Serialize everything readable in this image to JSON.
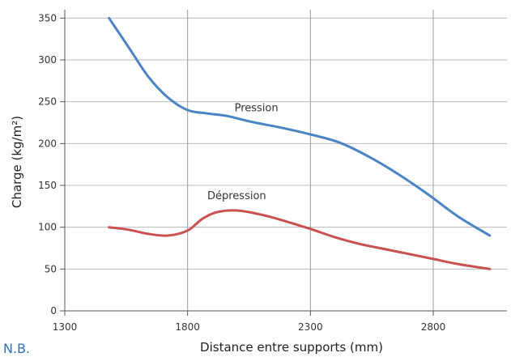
{
  "chart_data": {
    "type": "line",
    "xlabel": "Distance entre supports (mm)",
    "ylabel": "Charge (kg/m²)",
    "xlim": [
      1300,
      3100
    ],
    "ylim": [
      0,
      360
    ],
    "xticks": [
      1300,
      1800,
      2300,
      2800
    ],
    "yticks": [
      0,
      50,
      100,
      150,
      200,
      250,
      300,
      350
    ],
    "grid": {
      "vertical_at": [
        1800,
        2300,
        2800
      ],
      "horizontal_at": [
        50,
        100,
        150,
        200,
        250,
        300,
        350
      ]
    },
    "series": [
      {
        "name": "Pression",
        "color": "#4a84c4",
        "x": [
          1480,
          1560,
          1640,
          1720,
          1800,
          1880,
          1960,
          2060,
          2180,
          2300,
          2420,
          2540,
          2660,
          2780,
          2900,
          3030
        ],
        "y": [
          350,
          315,
          280,
          255,
          240,
          236,
          233,
          226,
          219,
          211,
          201,
          184,
          163,
          139,
          113,
          90
        ]
      },
      {
        "name": "Dépression",
        "color": "#c9504f",
        "x": [
          1480,
          1560,
          1640,
          1720,
          1800,
          1860,
          1920,
          2000,
          2100,
          2200,
          2300,
          2400,
          2500,
          2600,
          2700,
          2800,
          2900,
          3030
        ],
        "y": [
          100,
          97,
          92,
          90,
          96,
          110,
          118,
          120,
          115,
          107,
          98,
          88,
          80,
          74,
          68,
          62,
          56,
          50
        ]
      }
    ]
  },
  "footnote": "N.B."
}
